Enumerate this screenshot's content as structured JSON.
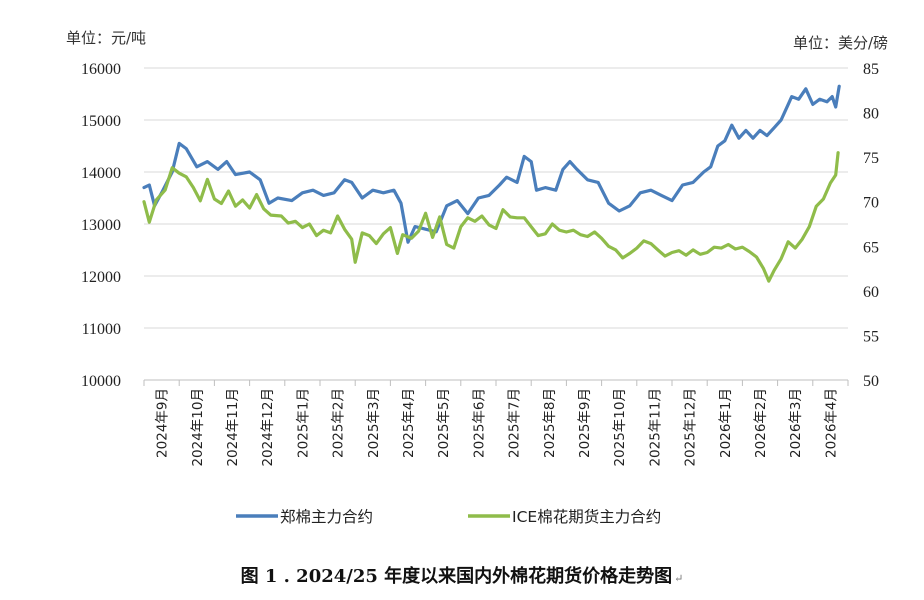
{
  "caption": "图 1 . 2024/25 年度以来国内外棉花期货价格走势图",
  "caption_mark": "↵",
  "chart_data": {
    "type": "line",
    "left_axis": {
      "unit_label": "单位：元/吨",
      "min": 10000,
      "max": 16000,
      "ticks": [
        10000,
        11000,
        12000,
        13000,
        14000,
        15000,
        16000
      ]
    },
    "right_axis": {
      "unit_label": "单位：美分/磅",
      "min": 50,
      "max": 85,
      "ticks": [
        50,
        55,
        60,
        65,
        70,
        75,
        80,
        85
      ]
    },
    "categories": [
      "2024年9月",
      "2024年10月",
      "2024年11月",
      "2024年12月",
      "2025年1月",
      "2025年2月",
      "2025年3月",
      "2025年4月",
      "2025年5月",
      "2025年6月",
      "2025年7月",
      "2025年8月",
      "2025年9月",
      "2025年10月",
      "2025年11月",
      "2025年12月",
      "2026年1月",
      "2026年2月",
      "2026年3月",
      "2026年4月"
    ],
    "series": [
      {
        "name": "郑棉主力合约",
        "axis": "left",
        "color": "#4a7ebb",
        "values": [
          [
            0,
            13700
          ],
          [
            0.15,
            13750
          ],
          [
            0.3,
            13350
          ],
          [
            0.5,
            13600
          ],
          [
            0.8,
            14000
          ],
          [
            1.0,
            14550
          ],
          [
            1.2,
            14450
          ],
          [
            1.5,
            14100
          ],
          [
            1.8,
            14200
          ],
          [
            2.1,
            14050
          ],
          [
            2.35,
            14200
          ],
          [
            2.6,
            13950
          ],
          [
            3.0,
            14000
          ],
          [
            3.3,
            13850
          ],
          [
            3.55,
            13400
          ],
          [
            3.8,
            13500
          ],
          [
            4.2,
            13450
          ],
          [
            4.5,
            13600
          ],
          [
            4.8,
            13650
          ],
          [
            5.1,
            13550
          ],
          [
            5.4,
            13600
          ],
          [
            5.7,
            13850
          ],
          [
            5.9,
            13800
          ],
          [
            6.2,
            13500
          ],
          [
            6.5,
            13650
          ],
          [
            6.8,
            13600
          ],
          [
            7.1,
            13650
          ],
          [
            7.3,
            13400
          ],
          [
            7.5,
            12650
          ],
          [
            7.7,
            12950
          ],
          [
            8.0,
            12900
          ],
          [
            8.3,
            12850
          ],
          [
            8.6,
            13350
          ],
          [
            8.9,
            13450
          ],
          [
            9.2,
            13200
          ],
          [
            9.5,
            13500
          ],
          [
            9.8,
            13550
          ],
          [
            10.1,
            13750
          ],
          [
            10.3,
            13900
          ],
          [
            10.6,
            13800
          ],
          [
            10.8,
            14300
          ],
          [
            11.0,
            14200
          ],
          [
            11.15,
            13650
          ],
          [
            11.4,
            13700
          ],
          [
            11.7,
            13650
          ],
          [
            11.9,
            14050
          ],
          [
            12.1,
            14200
          ],
          [
            12.3,
            14050
          ],
          [
            12.6,
            13850
          ],
          [
            12.9,
            13800
          ],
          [
            13.2,
            13400
          ],
          [
            13.5,
            13250
          ],
          [
            13.8,
            13350
          ],
          [
            14.1,
            13600
          ],
          [
            14.4,
            13650
          ],
          [
            14.7,
            13550
          ],
          [
            15.0,
            13450
          ],
          [
            15.3,
            13750
          ],
          [
            15.6,
            13800
          ],
          [
            15.9,
            14000
          ],
          [
            16.1,
            14100
          ],
          [
            16.3,
            14500
          ],
          [
            16.5,
            14600
          ],
          [
            16.7,
            14900
          ],
          [
            16.9,
            14650
          ],
          [
            17.1,
            14800
          ],
          [
            17.3,
            14650
          ],
          [
            17.5,
            14800
          ],
          [
            17.7,
            14700
          ],
          [
            17.9,
            14850
          ],
          [
            18.1,
            15000
          ],
          [
            18.3,
            15300
          ],
          [
            18.4,
            15450
          ],
          [
            18.6,
            15400
          ],
          [
            18.8,
            15600
          ],
          [
            19.0,
            15300
          ],
          [
            19.2,
            15400
          ],
          [
            19.4,
            15350
          ],
          [
            19.55,
            15450
          ],
          [
            19.65,
            15250
          ],
          [
            19.75,
            15650
          ]
        ]
      },
      {
        "name": "ICE棉花期货主力合约",
        "axis": "right",
        "color": "#8fbc4a",
        "values": [
          [
            0,
            70
          ],
          [
            0.15,
            67.7
          ],
          [
            0.35,
            70.2
          ],
          [
            0.6,
            71.3
          ],
          [
            0.8,
            73.8
          ],
          [
            1.0,
            73.2
          ],
          [
            1.2,
            72.8
          ],
          [
            1.4,
            71.6
          ],
          [
            1.6,
            70.1
          ],
          [
            1.8,
            72.5
          ],
          [
            2.0,
            70.3
          ],
          [
            2.2,
            69.8
          ],
          [
            2.4,
            71.2
          ],
          [
            2.6,
            69.5
          ],
          [
            2.8,
            70.2
          ],
          [
            3.0,
            69.3
          ],
          [
            3.2,
            70.8
          ],
          [
            3.4,
            69.2
          ],
          [
            3.6,
            68.5
          ],
          [
            3.9,
            68.4
          ],
          [
            4.1,
            67.6
          ],
          [
            4.3,
            67.8
          ],
          [
            4.5,
            67.1
          ],
          [
            4.7,
            67.5
          ],
          [
            4.9,
            66.2
          ],
          [
            5.1,
            66.8
          ],
          [
            5.3,
            66.5
          ],
          [
            5.5,
            68.4
          ],
          [
            5.7,
            66.9
          ],
          [
            5.9,
            65.8
          ],
          [
            6.0,
            63.2
          ],
          [
            6.2,
            66.5
          ],
          [
            6.4,
            66.2
          ],
          [
            6.6,
            65.3
          ],
          [
            6.8,
            66.4
          ],
          [
            7.0,
            67.1
          ],
          [
            7.2,
            64.2
          ],
          [
            7.35,
            66.3
          ],
          [
            7.6,
            65.9
          ],
          [
            7.8,
            66.7
          ],
          [
            8.0,
            68.7
          ],
          [
            8.2,
            66.0
          ],
          [
            8.4,
            68.3
          ],
          [
            8.6,
            65.2
          ],
          [
            8.8,
            64.8
          ],
          [
            9.0,
            67.2
          ],
          [
            9.2,
            68.2
          ],
          [
            9.4,
            67.8
          ],
          [
            9.6,
            68.4
          ],
          [
            9.8,
            67.4
          ],
          [
            10.0,
            67.0
          ],
          [
            10.2,
            69.1
          ],
          [
            10.4,
            68.3
          ],
          [
            10.6,
            68.2
          ],
          [
            10.8,
            68.2
          ],
          [
            11.0,
            67.2
          ],
          [
            11.2,
            66.2
          ],
          [
            11.4,
            66.4
          ],
          [
            11.6,
            67.5
          ],
          [
            11.8,
            66.8
          ],
          [
            12.0,
            66.6
          ],
          [
            12.2,
            66.8
          ],
          [
            12.4,
            66.3
          ],
          [
            12.6,
            66.1
          ],
          [
            12.8,
            66.6
          ],
          [
            13.0,
            65.9
          ],
          [
            13.2,
            65.0
          ],
          [
            13.4,
            64.6
          ],
          [
            13.6,
            63.7
          ],
          [
            13.8,
            64.2
          ],
          [
            14.0,
            64.8
          ],
          [
            14.2,
            65.6
          ],
          [
            14.4,
            65.3
          ],
          [
            14.6,
            64.6
          ],
          [
            14.8,
            63.9
          ],
          [
            15.0,
            64.3
          ],
          [
            15.2,
            64.5
          ],
          [
            15.4,
            64.0
          ],
          [
            15.6,
            64.6
          ],
          [
            15.8,
            64.1
          ],
          [
            16.0,
            64.3
          ],
          [
            16.2,
            64.9
          ],
          [
            16.4,
            64.8
          ],
          [
            16.6,
            65.2
          ],
          [
            16.8,
            64.7
          ],
          [
            17.0,
            64.9
          ],
          [
            17.2,
            64.4
          ],
          [
            17.4,
            63.8
          ],
          [
            17.6,
            62.5
          ],
          [
            17.75,
            61.1
          ],
          [
            17.9,
            62.3
          ],
          [
            18.1,
            63.6
          ],
          [
            18.3,
            65.5
          ],
          [
            18.5,
            64.8
          ],
          [
            18.7,
            65.8
          ],
          [
            18.9,
            67.2
          ],
          [
            19.1,
            69.5
          ],
          [
            19.3,
            70.3
          ],
          [
            19.5,
            72.1
          ],
          [
            19.65,
            73.0
          ],
          [
            19.72,
            75.5
          ]
        ]
      }
    ],
    "legend_position": "bottom",
    "grid": {
      "x": false,
      "y": true
    }
  }
}
